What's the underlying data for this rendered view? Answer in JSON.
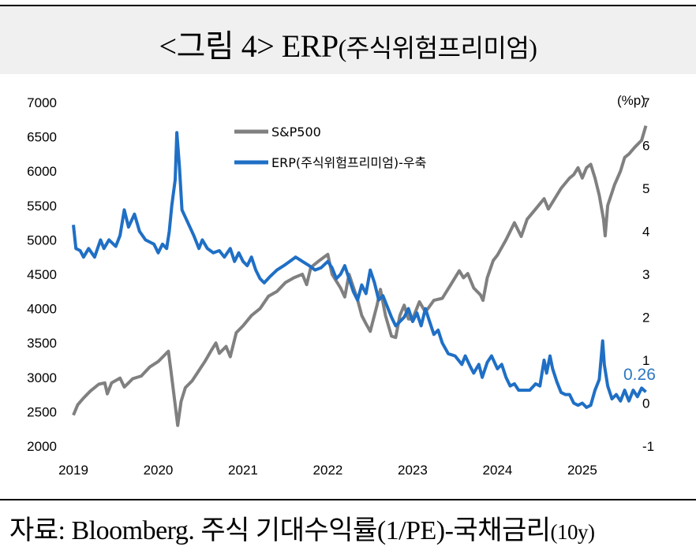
{
  "header": {
    "title_main": "<그림 4> ERP",
    "title_paren": "(주식위험프리미엄)"
  },
  "footer": {
    "source_main": "자료: Bloomberg.  주식  기대수익률(1/PE)-국채금리",
    "source_small": "(10y)"
  },
  "chart_data": {
    "type": "line",
    "left_axis": {
      "ticks": [
        2000,
        2500,
        3000,
        3500,
        4000,
        4500,
        5000,
        5500,
        6000,
        6500,
        7000
      ],
      "ylim": [
        2000,
        7000
      ]
    },
    "right_axis": {
      "unit_label": "(%p)",
      "ticks": [
        -1,
        0,
        1,
        2,
        3,
        4,
        5,
        6,
        7
      ],
      "ylim": [
        -1,
        7
      ]
    },
    "x_ticks": [
      "2019",
      "2020",
      "2021",
      "2022",
      "2023",
      "2024",
      "2025"
    ],
    "xlim": [
      2019.0,
      2025.95
    ],
    "legend_position": "top-center",
    "last_value_label": "0.26",
    "colors": {
      "sp500": "#808080",
      "erp": "#1f6fc5",
      "last_label": "#2b77c0"
    },
    "series": [
      {
        "name": "S&P500",
        "axis": "left",
        "points": [
          [
            2019.0,
            2450
          ],
          [
            2019.05,
            2600
          ],
          [
            2019.12,
            2700
          ],
          [
            2019.2,
            2800
          ],
          [
            2019.3,
            2900
          ],
          [
            2019.37,
            2920
          ],
          [
            2019.4,
            2760
          ],
          [
            2019.45,
            2920
          ],
          [
            2019.55,
            2990
          ],
          [
            2019.6,
            2860
          ],
          [
            2019.65,
            2920
          ],
          [
            2019.7,
            2980
          ],
          [
            2019.8,
            3020
          ],
          [
            2019.9,
            3150
          ],
          [
            2020.0,
            3230
          ],
          [
            2020.08,
            3330
          ],
          [
            2020.12,
            3380
          ],
          [
            2020.15,
            3100
          ],
          [
            2020.2,
            2600
          ],
          [
            2020.23,
            2300
          ],
          [
            2020.27,
            2650
          ],
          [
            2020.32,
            2850
          ],
          [
            2020.4,
            2950
          ],
          [
            2020.48,
            3100
          ],
          [
            2020.55,
            3230
          ],
          [
            2020.62,
            3380
          ],
          [
            2020.68,
            3500
          ],
          [
            2020.72,
            3350
          ],
          [
            2020.8,
            3450
          ],
          [
            2020.85,
            3300
          ],
          [
            2020.92,
            3650
          ],
          [
            2021.0,
            3750
          ],
          [
            2021.1,
            3900
          ],
          [
            2021.2,
            4000
          ],
          [
            2021.3,
            4180
          ],
          [
            2021.4,
            4250
          ],
          [
            2021.5,
            4380
          ],
          [
            2021.6,
            4450
          ],
          [
            2021.7,
            4500
          ],
          [
            2021.75,
            4350
          ],
          [
            2021.8,
            4600
          ],
          [
            2021.9,
            4700
          ],
          [
            2022.0,
            4790
          ],
          [
            2022.05,
            4500
          ],
          [
            2022.15,
            4300
          ],
          [
            2022.2,
            4170
          ],
          [
            2022.25,
            4500
          ],
          [
            2022.35,
            4130
          ],
          [
            2022.4,
            3900
          ],
          [
            2022.45,
            3780
          ],
          [
            2022.5,
            3670
          ],
          [
            2022.58,
            4050
          ],
          [
            2022.62,
            4280
          ],
          [
            2022.68,
            3900
          ],
          [
            2022.75,
            3600
          ],
          [
            2022.8,
            3580
          ],
          [
            2022.85,
            3900
          ],
          [
            2022.9,
            4050
          ],
          [
            2022.95,
            3850
          ],
          [
            2023.0,
            3850
          ],
          [
            2023.08,
            4100
          ],
          [
            2023.15,
            3950
          ],
          [
            2023.25,
            4120
          ],
          [
            2023.35,
            4150
          ],
          [
            2023.45,
            4350
          ],
          [
            2023.55,
            4550
          ],
          [
            2023.6,
            4450
          ],
          [
            2023.65,
            4510
          ],
          [
            2023.72,
            4300
          ],
          [
            2023.8,
            4200
          ],
          [
            2023.83,
            4120
          ],
          [
            2023.88,
            4450
          ],
          [
            2023.95,
            4700
          ],
          [
            2024.0,
            4780
          ],
          [
            2024.1,
            5000
          ],
          [
            2024.2,
            5250
          ],
          [
            2024.28,
            5050
          ],
          [
            2024.35,
            5300
          ],
          [
            2024.45,
            5450
          ],
          [
            2024.55,
            5600
          ],
          [
            2024.6,
            5450
          ],
          [
            2024.65,
            5550
          ],
          [
            2024.75,
            5750
          ],
          [
            2024.85,
            5900
          ],
          [
            2024.9,
            5950
          ],
          [
            2024.95,
            6050
          ],
          [
            2025.0,
            5900
          ],
          [
            2025.05,
            6050
          ],
          [
            2025.1,
            6100
          ],
          [
            2025.15,
            5900
          ],
          [
            2025.2,
            5650
          ],
          [
            2025.25,
            5300
          ],
          [
            2025.27,
            5060
          ],
          [
            2025.3,
            5500
          ],
          [
            2025.38,
            5800
          ],
          [
            2025.45,
            6000
          ],
          [
            2025.5,
            6200
          ],
          [
            2025.55,
            6250
          ],
          [
            2025.62,
            6350
          ],
          [
            2025.7,
            6450
          ],
          [
            2025.75,
            6660
          ]
        ]
      },
      {
        "name": "ERP(주식위험프리미엄)-우축",
        "axis": "right",
        "points": [
          [
            2019.0,
            4.15
          ],
          [
            2019.03,
            3.6
          ],
          [
            2019.08,
            3.55
          ],
          [
            2019.12,
            3.4
          ],
          [
            2019.18,
            3.6
          ],
          [
            2019.25,
            3.4
          ],
          [
            2019.32,
            3.8
          ],
          [
            2019.36,
            3.6
          ],
          [
            2019.42,
            3.8
          ],
          [
            2019.5,
            3.65
          ],
          [
            2019.55,
            3.9
          ],
          [
            2019.6,
            4.5
          ],
          [
            2019.65,
            4.1
          ],
          [
            2019.72,
            4.4
          ],
          [
            2019.78,
            4.0
          ],
          [
            2019.85,
            3.8
          ],
          [
            2019.95,
            3.7
          ],
          [
            2020.0,
            3.5
          ],
          [
            2020.05,
            3.7
          ],
          [
            2020.1,
            3.6
          ],
          [
            2020.13,
            4.0
          ],
          [
            2020.16,
            4.6
          ],
          [
            2020.2,
            5.2
          ],
          [
            2020.22,
            6.3
          ],
          [
            2020.25,
            5.5
          ],
          [
            2020.28,
            4.5
          ],
          [
            2020.35,
            4.2
          ],
          [
            2020.42,
            3.9
          ],
          [
            2020.48,
            3.6
          ],
          [
            2020.52,
            3.8
          ],
          [
            2020.58,
            3.6
          ],
          [
            2020.65,
            3.5
          ],
          [
            2020.72,
            3.55
          ],
          [
            2020.78,
            3.4
          ],
          [
            2020.85,
            3.6
          ],
          [
            2020.9,
            3.3
          ],
          [
            2020.95,
            3.5
          ],
          [
            2021.0,
            3.3
          ],
          [
            2021.05,
            3.2
          ],
          [
            2021.1,
            3.4
          ],
          [
            2021.15,
            3.1
          ],
          [
            2021.2,
            2.9
          ],
          [
            2021.25,
            2.8
          ],
          [
            2021.32,
            2.95
          ],
          [
            2021.4,
            3.1
          ],
          [
            2021.48,
            3.2
          ],
          [
            2021.55,
            3.3
          ],
          [
            2021.62,
            3.4
          ],
          [
            2021.7,
            3.3
          ],
          [
            2021.78,
            3.2
          ],
          [
            2021.85,
            3.1
          ],
          [
            2021.92,
            3.15
          ],
          [
            2022.0,
            3.3
          ],
          [
            2022.05,
            3.15
          ],
          [
            2022.1,
            2.9
          ],
          [
            2022.15,
            3.0
          ],
          [
            2022.2,
            3.2
          ],
          [
            2022.25,
            2.9
          ],
          [
            2022.3,
            2.6
          ],
          [
            2022.35,
            2.4
          ],
          [
            2022.4,
            2.75
          ],
          [
            2022.45,
            2.55
          ],
          [
            2022.5,
            3.1
          ],
          [
            2022.55,
            2.8
          ],
          [
            2022.6,
            2.4
          ],
          [
            2022.65,
            2.5
          ],
          [
            2022.7,
            2.25
          ],
          [
            2022.75,
            2.0
          ],
          [
            2022.8,
            1.8
          ],
          [
            2022.85,
            1.9
          ],
          [
            2022.9,
            2.0
          ],
          [
            2022.95,
            2.2
          ],
          [
            2023.0,
            1.9
          ],
          [
            2023.05,
            2.1
          ],
          [
            2023.1,
            1.8
          ],
          [
            2023.15,
            2.2
          ],
          [
            2023.2,
            1.9
          ],
          [
            2023.25,
            1.6
          ],
          [
            2023.3,
            1.7
          ],
          [
            2023.35,
            1.4
          ],
          [
            2023.42,
            1.15
          ],
          [
            2023.5,
            1.1
          ],
          [
            2023.58,
            0.9
          ],
          [
            2023.62,
            1.1
          ],
          [
            2023.68,
            0.85
          ],
          [
            2023.72,
            0.7
          ],
          [
            2023.78,
            0.9
          ],
          [
            2023.82,
            0.6
          ],
          [
            2023.88,
            0.95
          ],
          [
            2023.93,
            1.1
          ],
          [
            2024.0,
            0.8
          ],
          [
            2024.05,
            0.9
          ],
          [
            2024.1,
            0.6
          ],
          [
            2024.15,
            0.4
          ],
          [
            2024.2,
            0.45
          ],
          [
            2024.25,
            0.3
          ],
          [
            2024.3,
            0.3
          ],
          [
            2024.38,
            0.3
          ],
          [
            2024.45,
            0.45
          ],
          [
            2024.5,
            0.4
          ],
          [
            2024.55,
            1.0
          ],
          [
            2024.58,
            0.7
          ],
          [
            2024.62,
            1.1
          ],
          [
            2024.65,
            0.8
          ],
          [
            2024.7,
            0.5
          ],
          [
            2024.75,
            0.25
          ],
          [
            2024.8,
            0.2
          ],
          [
            2024.85,
            0.2
          ],
          [
            2024.9,
            0.0
          ],
          [
            2024.95,
            -0.05
          ],
          [
            2025.0,
            0.0
          ],
          [
            2025.05,
            -0.1
          ],
          [
            2025.1,
            -0.05
          ],
          [
            2025.15,
            0.3
          ],
          [
            2025.2,
            0.55
          ],
          [
            2025.24,
            1.45
          ],
          [
            2025.26,
            0.9
          ],
          [
            2025.3,
            0.4
          ],
          [
            2025.35,
            0.1
          ],
          [
            2025.4,
            0.2
          ],
          [
            2025.45,
            0.05
          ],
          [
            2025.5,
            0.3
          ],
          [
            2025.55,
            0.05
          ],
          [
            2025.6,
            0.3
          ],
          [
            2025.65,
            0.15
          ],
          [
            2025.7,
            0.35
          ],
          [
            2025.75,
            0.26
          ]
        ]
      }
    ]
  }
}
